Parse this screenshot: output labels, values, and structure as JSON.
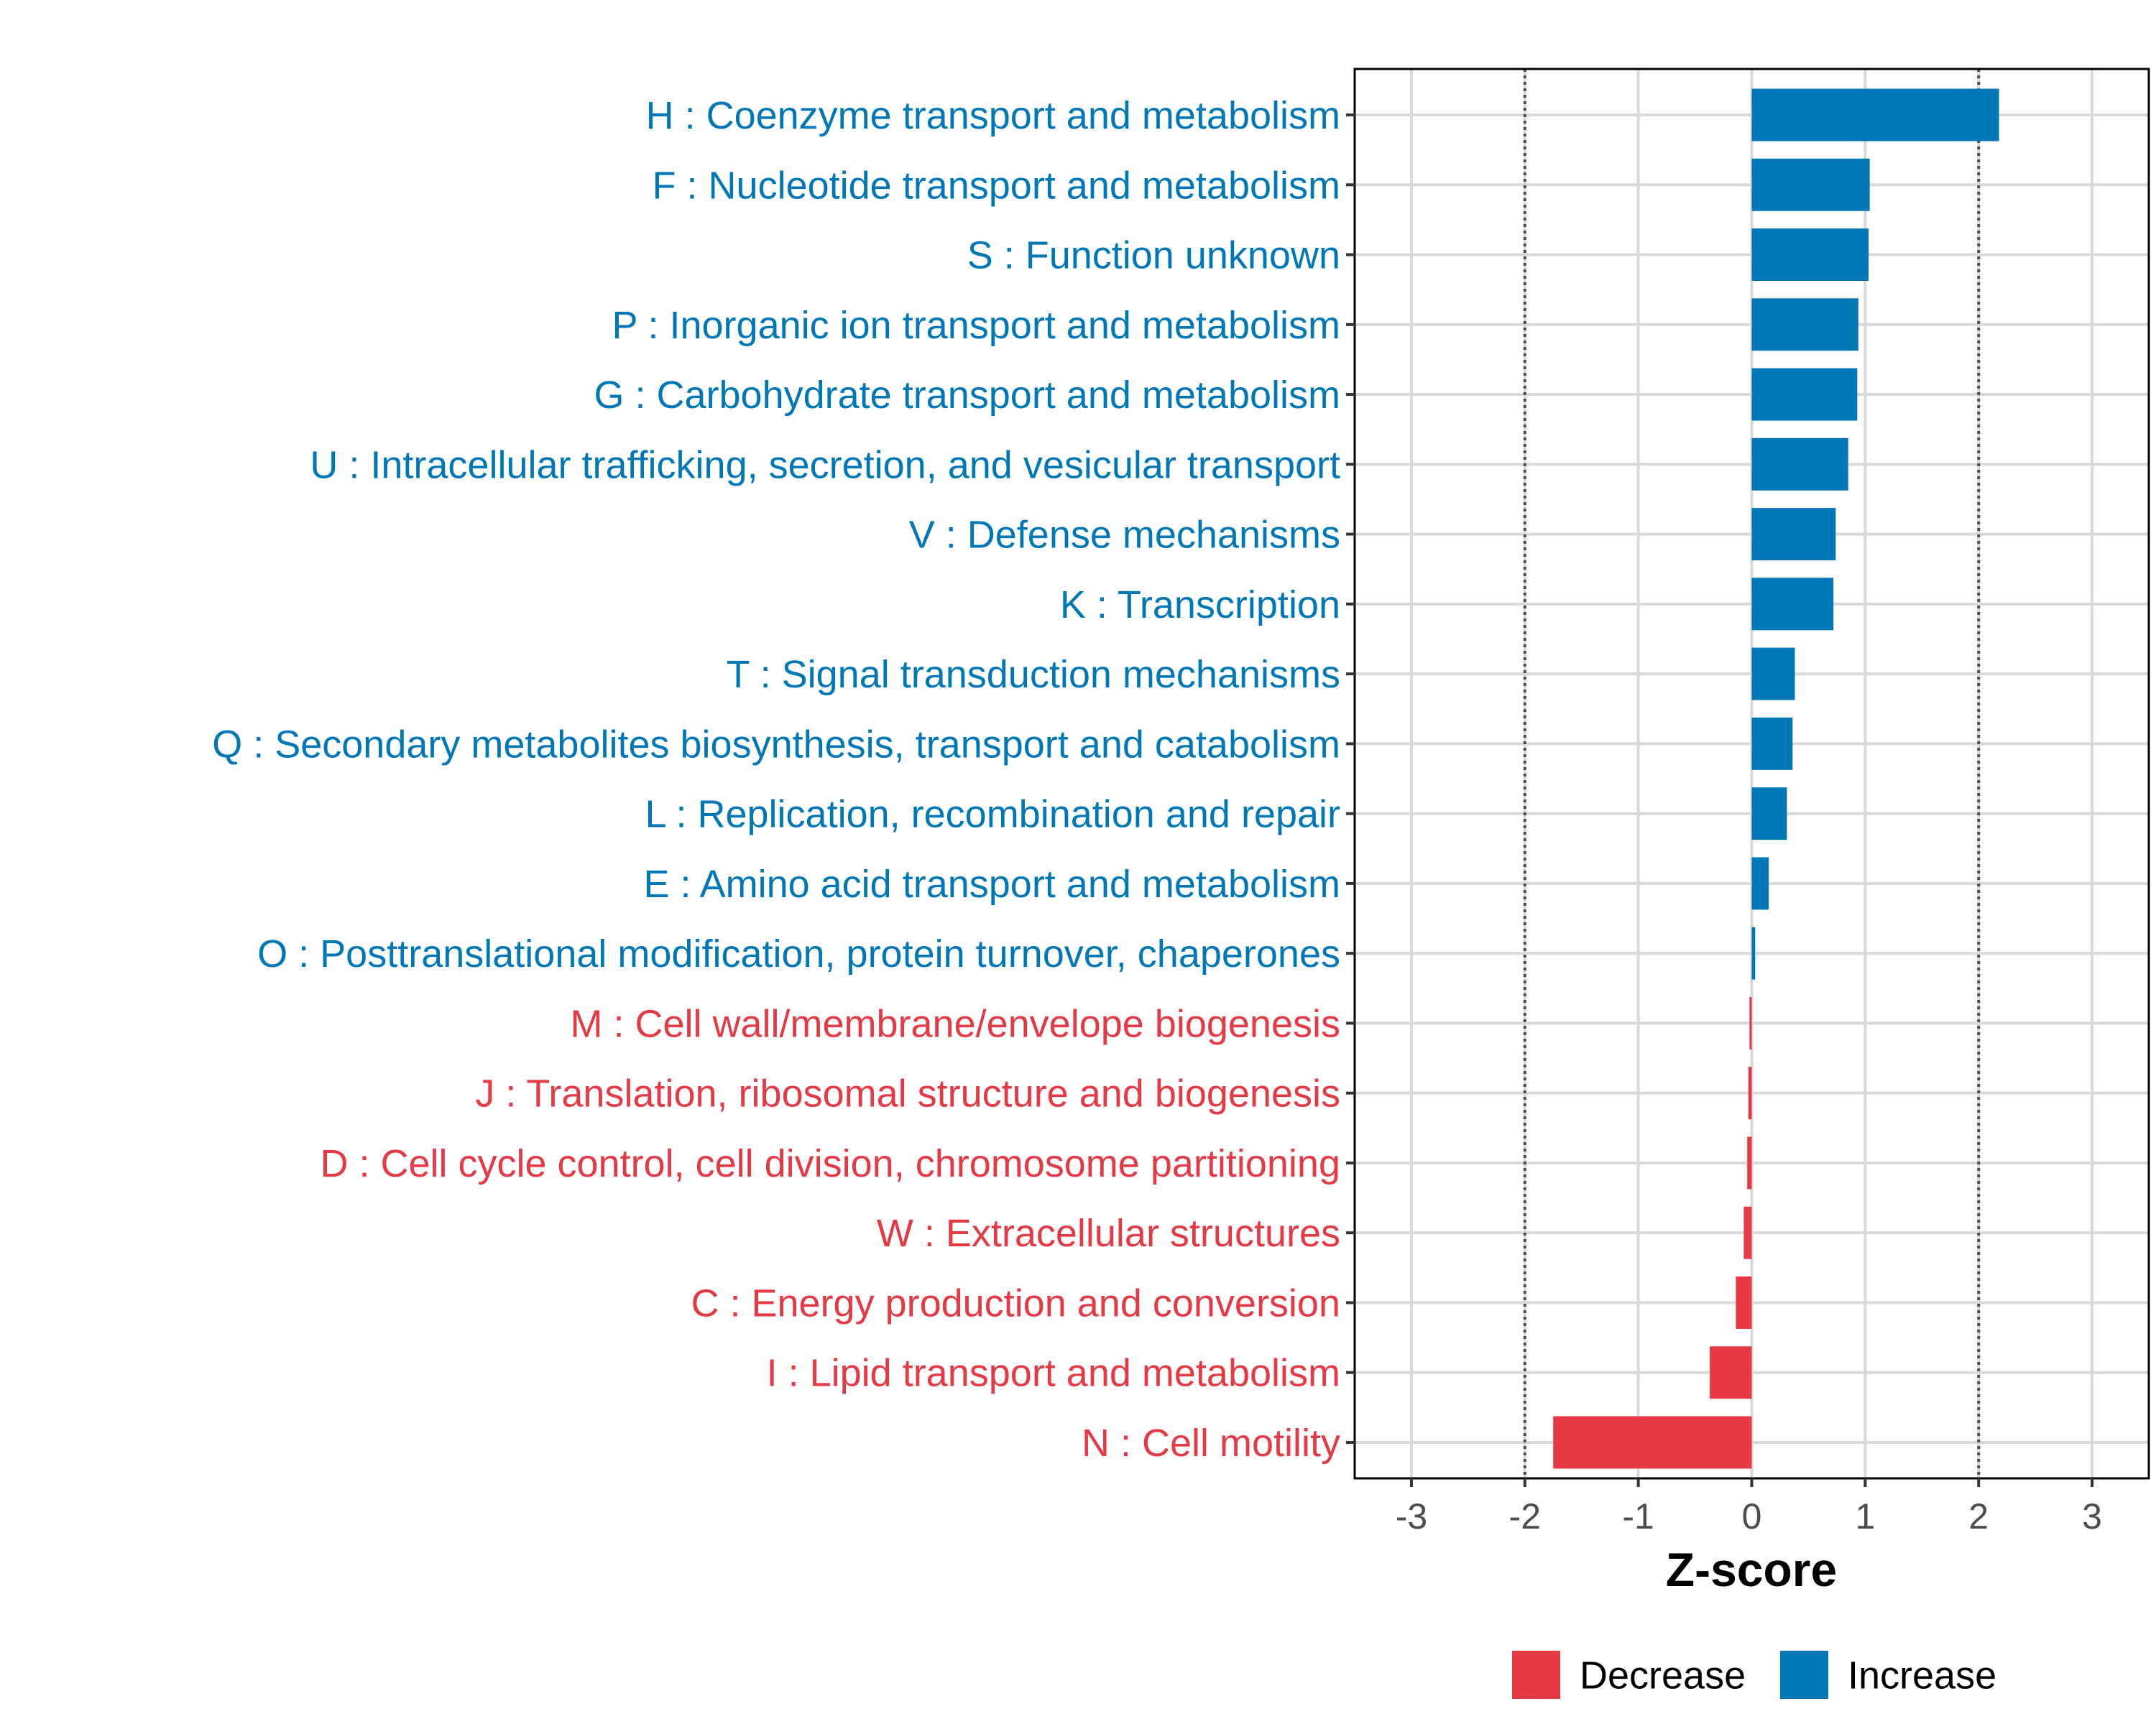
{
  "chart_data": {
    "type": "bar",
    "orientation": "horizontal",
    "title": "",
    "xlabel": "Z-score",
    "ylabel": "",
    "xlim": [
      -3.5,
      3.5
    ],
    "xticks": [
      -3,
      -2,
      -1,
      0,
      1,
      2,
      3
    ],
    "xtick_labels": [
      "-3",
      "-2",
      "-1",
      "0",
      "1",
      "2",
      "3"
    ],
    "reference_lines": [
      -2,
      2
    ],
    "grid": true,
    "legend_position": "bottom",
    "colors": {
      "Increase": "#0077B6",
      "Decrease": "#E63946"
    },
    "legend": [
      {
        "label": "Decrease",
        "color": "#E63946"
      },
      {
        "label": "Increase",
        "color": "#0077B6"
      }
    ],
    "categories": [
      "H : Coenzyme transport and metabolism",
      "F : Nucleotide transport and metabolism",
      "S : Function unknown",
      "P : Inorganic ion transport and metabolism",
      "G : Carbohydrate transport and metabolism",
      "U : Intracellular trafficking, secretion, and vesicular transport",
      "V : Defense mechanisms",
      "K : Transcription",
      "T : Signal transduction mechanisms",
      "Q : Secondary metabolites biosynthesis, transport and catabolism",
      "L : Replication, recombination and repair",
      "E : Amino acid transport and metabolism",
      "O : Posttranslational modification, protein turnover, chaperones",
      "M : Cell wall/membrane/envelope biogenesis",
      "J : Translation, ribosomal structure and biogenesis",
      "D : Cell cycle control, cell division, chromosome partitioning",
      "W : Extracellular structures",
      "C : Energy production and conversion",
      "I : Lipid transport and metabolism",
      "N : Cell motility"
    ],
    "values": [
      2.18,
      1.04,
      1.03,
      0.94,
      0.93,
      0.85,
      0.74,
      0.72,
      0.38,
      0.36,
      0.31,
      0.15,
      0.03,
      -0.02,
      -0.03,
      -0.04,
      -0.07,
      -0.14,
      -0.37,
      -1.75
    ],
    "groups": [
      "Increase",
      "Increase",
      "Increase",
      "Increase",
      "Increase",
      "Increase",
      "Increase",
      "Increase",
      "Increase",
      "Increase",
      "Increase",
      "Increase",
      "Increase",
      "Decrease",
      "Decrease",
      "Decrease",
      "Decrease",
      "Decrease",
      "Decrease",
      "Decrease"
    ]
  }
}
